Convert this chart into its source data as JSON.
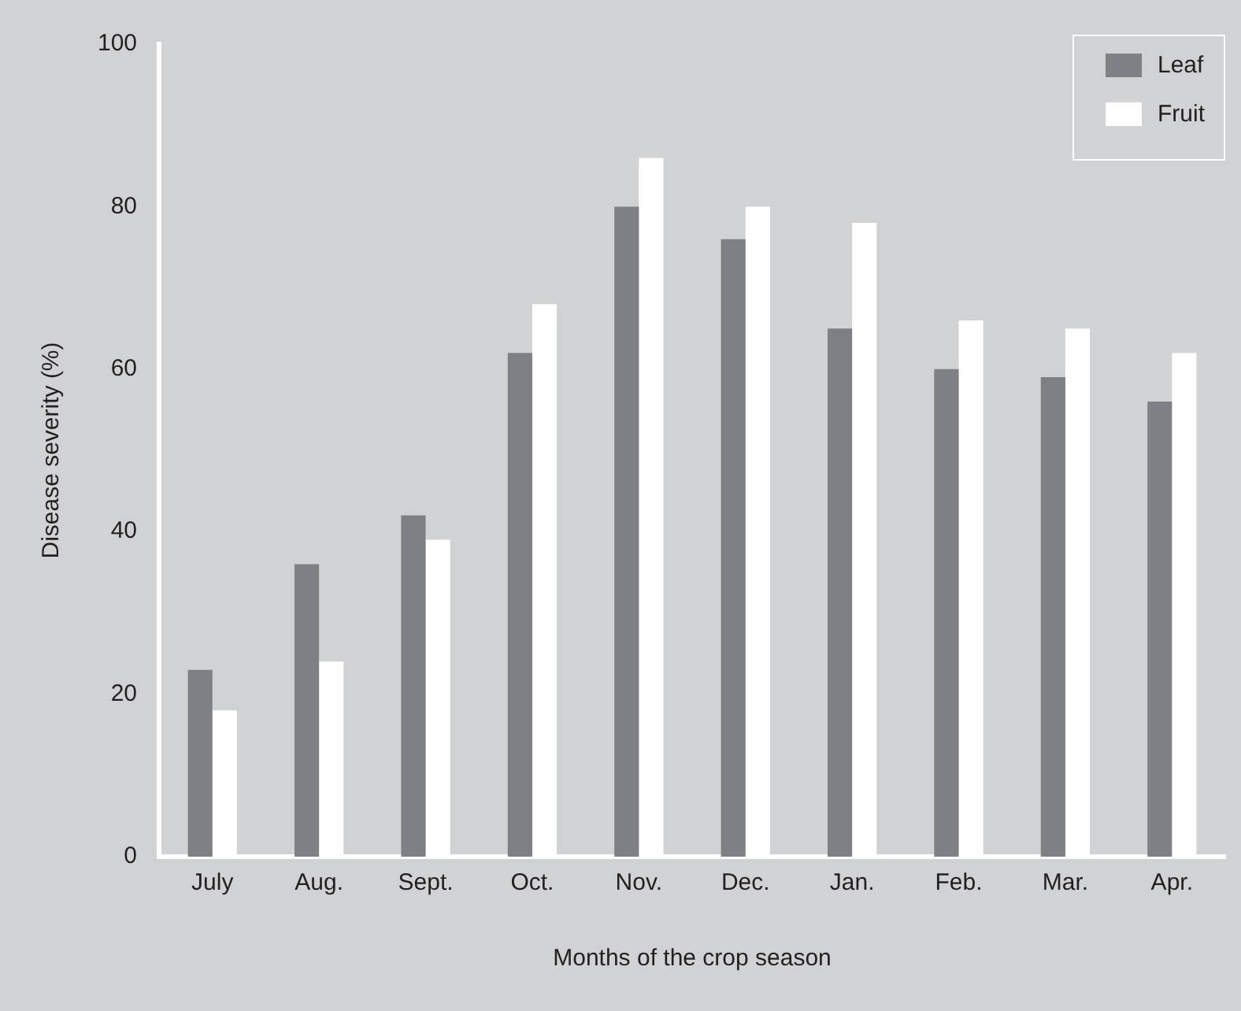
{
  "chart_data": {
    "type": "bar",
    "xlabel": "Months of the crop season",
    "ylabel": "Disease severity (%)",
    "categories": [
      "July",
      "Aug.",
      "Sept.",
      "Oct.",
      "Nov.",
      "Dec.",
      "Jan.",
      "Feb.",
      "Mar.",
      "Apr."
    ],
    "series": [
      {
        "name": "Leaf",
        "color": "#7f8084",
        "values": [
          23,
          36,
          42,
          62,
          80,
          76,
          65,
          60,
          59,
          56
        ]
      },
      {
        "name": "Fruit",
        "color": "#ffffff",
        "values": [
          18,
          24,
          39,
          68,
          86,
          80,
          78,
          66,
          65,
          62
        ]
      }
    ],
    "ylim": [
      0,
      100
    ],
    "yticks": [
      0,
      20,
      40,
      60,
      80,
      100
    ],
    "grid": false,
    "legend": "top right"
  }
}
